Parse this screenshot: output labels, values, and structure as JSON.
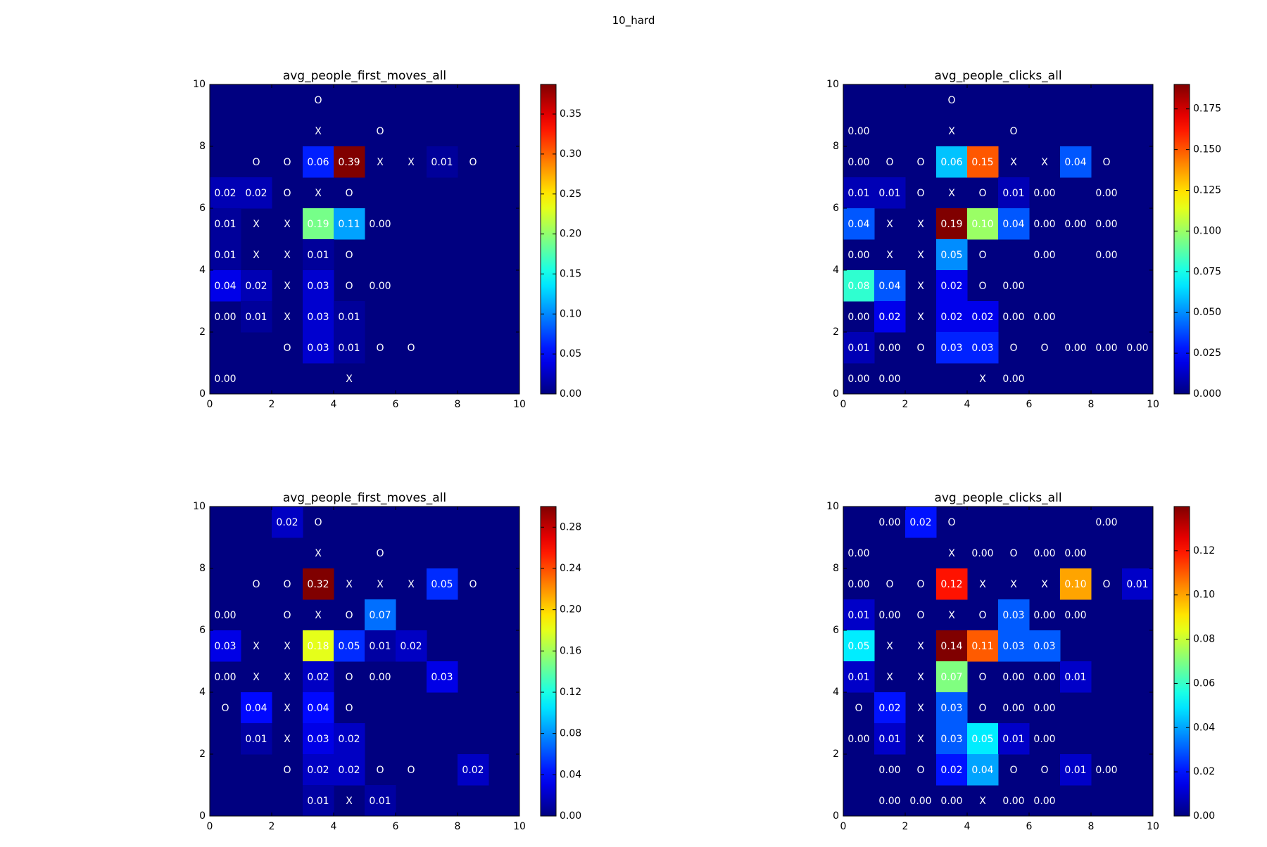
{
  "figure": {
    "suptitle": "10_hard"
  },
  "chart_data": [
    {
      "type": "heatmap",
      "title": "avg_people_first_moves_all",
      "xlim": [
        0,
        10
      ],
      "ylim": [
        0,
        10
      ],
      "xticks": [
        "0",
        "2",
        "4",
        "6",
        "8",
        "10"
      ],
      "yticks": [
        "0",
        "2",
        "4",
        "6",
        "8",
        "10"
      ],
      "colorbar": {
        "vmin": 0.0,
        "vmax": 0.387,
        "ticks": [
          "0.00",
          "0.05",
          "0.10",
          "0.15",
          "0.20",
          "0.25",
          "0.30",
          "0.35"
        ],
        "tick_values": [
          0,
          0.05,
          0.1,
          0.15,
          0.2,
          0.25,
          0.3,
          0.35
        ]
      },
      "grid": [
        [
          "",
          "",
          "",
          "O",
          "",
          "",
          "",
          "",
          "",
          ""
        ],
        [
          "",
          "",
          "",
          "X",
          "",
          "O",
          "",
          "",
          "",
          ""
        ],
        [
          "",
          "O",
          "O",
          "0.06",
          "0.39",
          "X",
          "X",
          "0.01",
          "O",
          ""
        ],
        [
          "0.02",
          "0.02",
          "O",
          "X",
          "O",
          "",
          "",
          "",
          "",
          ""
        ],
        [
          "0.01",
          "X",
          "X",
          "0.19",
          "0.11",
          "0.00",
          "",
          "",
          "",
          ""
        ],
        [
          "0.01",
          "X",
          "X",
          "0.01",
          "O",
          "",
          "",
          "",
          "",
          ""
        ],
        [
          "0.04",
          "0.02",
          "X",
          "0.03",
          "O",
          "0.00",
          "",
          "",
          "",
          ""
        ],
        [
          "0.00",
          "0.01",
          "X",
          "0.03",
          "0.01",
          "",
          "",
          "",
          "",
          ""
        ],
        [
          "",
          "",
          "O",
          "0.03",
          "0.01",
          "O",
          "O",
          "",
          "",
          ""
        ],
        [
          "0.00",
          "",
          "",
          "",
          "X",
          "",
          "",
          "",
          "",
          ""
        ]
      ]
    },
    {
      "type": "heatmap",
      "title": "avg_people_clicks_all",
      "xlim": [
        0,
        10
      ],
      "ylim": [
        0,
        10
      ],
      "xticks": [
        "0",
        "2",
        "4",
        "6",
        "8",
        "10"
      ],
      "yticks": [
        "0",
        "2",
        "4",
        "6",
        "8",
        "10"
      ],
      "colorbar": {
        "vmin": 0.0,
        "vmax": 0.19,
        "ticks": [
          "0.000",
          "0.025",
          "0.050",
          "0.075",
          "0.100",
          "0.125",
          "0.150",
          "0.175"
        ],
        "tick_values": [
          0,
          0.025,
          0.05,
          0.075,
          0.1,
          0.125,
          0.15,
          0.175
        ]
      },
      "grid": [
        [
          "",
          "",
          "",
          "O",
          "",
          "",
          "",
          "",
          "",
          ""
        ],
        [
          "0.00",
          "",
          "",
          "X",
          "",
          "O",
          "",
          "",
          "",
          ""
        ],
        [
          "0.00",
          "O",
          "O",
          "0.06",
          "0.15",
          "X",
          "X",
          "0.04",
          "O",
          ""
        ],
        [
          "0.01",
          "0.01",
          "O",
          "X",
          "O",
          "0.01",
          "0.00",
          "",
          "0.00",
          ""
        ],
        [
          "0.04",
          "X",
          "X",
          "0.19",
          "0.10",
          "0.04",
          "0.00",
          "0.00",
          "0.00",
          ""
        ],
        [
          "0.00",
          "X",
          "X",
          "0.05",
          "O",
          "",
          "0.00",
          "",
          "0.00",
          ""
        ],
        [
          "0.08",
          "0.04",
          "X",
          "0.02",
          "O",
          "0.00",
          "",
          "",
          "",
          ""
        ],
        [
          "0.00",
          "0.02",
          "X",
          "0.02",
          "0.02",
          "0.00",
          "0.00",
          "",
          "",
          ""
        ],
        [
          "0.01",
          "0.00",
          "O",
          "0.03",
          "0.03",
          "O",
          "O",
          "0.00",
          "0.00",
          "0.00"
        ],
        [
          "0.00",
          "0.00",
          "",
          "",
          "X",
          "0.00",
          "",
          "",
          "",
          ""
        ]
      ]
    },
    {
      "type": "heatmap",
      "title": "avg_people_first_moves_all",
      "xlim": [
        0,
        10
      ],
      "ylim": [
        0,
        10
      ],
      "xticks": [
        "0",
        "2",
        "4",
        "6",
        "8",
        "10"
      ],
      "yticks": [
        "0",
        "2",
        "4",
        "6",
        "8",
        "10"
      ],
      "colorbar": {
        "vmin": 0.0,
        "vmax": 0.3,
        "ticks": [
          "0.00",
          "0.04",
          "0.08",
          "0.12",
          "0.16",
          "0.20",
          "0.24",
          "0.28"
        ],
        "tick_values": [
          0,
          0.04,
          0.08,
          0.12,
          0.16,
          0.2,
          0.24,
          0.28
        ]
      },
      "grid": [
        [
          "",
          "",
          "0.02",
          "O",
          "",
          "",
          "",
          "",
          "",
          ""
        ],
        [
          "",
          "",
          "",
          "X",
          "",
          "O",
          "",
          "",
          "",
          ""
        ],
        [
          "",
          "O",
          "O",
          "0.32",
          "X",
          "X",
          "X",
          "0.05",
          "O",
          ""
        ],
        [
          "0.00",
          "",
          "O",
          "X",
          "O",
          "0.07",
          "",
          "",
          "",
          ""
        ],
        [
          "0.03",
          "X",
          "X",
          "0.18",
          "0.05",
          "0.01",
          "0.02",
          "",
          "",
          ""
        ],
        [
          "0.00",
          "X",
          "X",
          "0.02",
          "O",
          "0.00",
          "",
          "0.03",
          "",
          ""
        ],
        [
          "O",
          "0.04",
          "X",
          "0.04",
          "O",
          "",
          "",
          "",
          "",
          ""
        ],
        [
          "",
          "0.01",
          "X",
          "0.03",
          "0.02",
          "",
          "",
          "",
          "",
          ""
        ],
        [
          "",
          "",
          "O",
          "0.02",
          "0.02",
          "O",
          "O",
          "",
          "0.02",
          ""
        ],
        [
          "",
          "",
          "",
          "0.01",
          "X",
          "0.01",
          "",
          "",
          "",
          ""
        ]
      ]
    },
    {
      "type": "heatmap",
      "title": "avg_people_clicks_all",
      "xlim": [
        0,
        10
      ],
      "ylim": [
        0,
        10
      ],
      "xticks": [
        "0",
        "2",
        "4",
        "6",
        "8",
        "10"
      ],
      "yticks": [
        "0",
        "2",
        "4",
        "6",
        "8",
        "10"
      ],
      "colorbar": {
        "vmin": 0.0,
        "vmax": 0.14,
        "ticks": [
          "0.00",
          "0.02",
          "0.04",
          "0.06",
          "0.08",
          "0.10",
          "0.12"
        ],
        "tick_values": [
          0,
          0.02,
          0.04,
          0.06,
          0.08,
          0.1,
          0.12
        ]
      },
      "grid": [
        [
          "",
          "0.00",
          "0.02",
          "O",
          "",
          "",
          "",
          "",
          "0.00",
          ""
        ],
        [
          "0.00",
          "",
          "",
          "X",
          "0.00",
          "O",
          "0.00",
          "0.00",
          "",
          ""
        ],
        [
          "0.00",
          "O",
          "O",
          "0.12",
          "X",
          "X",
          "X",
          "0.10",
          "O",
          "0.01"
        ],
        [
          "0.01",
          "0.00",
          "O",
          "X",
          "O",
          "0.03",
          "0.00",
          "0.00",
          "",
          ""
        ],
        [
          "0.05",
          "X",
          "X",
          "0.14",
          "0.11",
          "0.03",
          "0.03",
          "",
          "",
          ""
        ],
        [
          "0.01",
          "X",
          "X",
          "0.07",
          "O",
          "0.00",
          "0.00",
          "0.01",
          "",
          ""
        ],
        [
          "O",
          "0.02",
          "X",
          "0.03",
          "O",
          "0.00",
          "0.00",
          "",
          "",
          ""
        ],
        [
          "0.00",
          "0.01",
          "X",
          "0.03",
          "0.05",
          "0.01",
          "0.00",
          "",
          "",
          ""
        ],
        [
          "",
          "0.00",
          "O",
          "0.02",
          "0.04",
          "O",
          "O",
          "0.01",
          "0.00",
          ""
        ],
        [
          "",
          "0.00",
          "0.00",
          "0.00",
          "X",
          "0.00",
          "0.00",
          "",
          "",
          ""
        ]
      ]
    }
  ]
}
